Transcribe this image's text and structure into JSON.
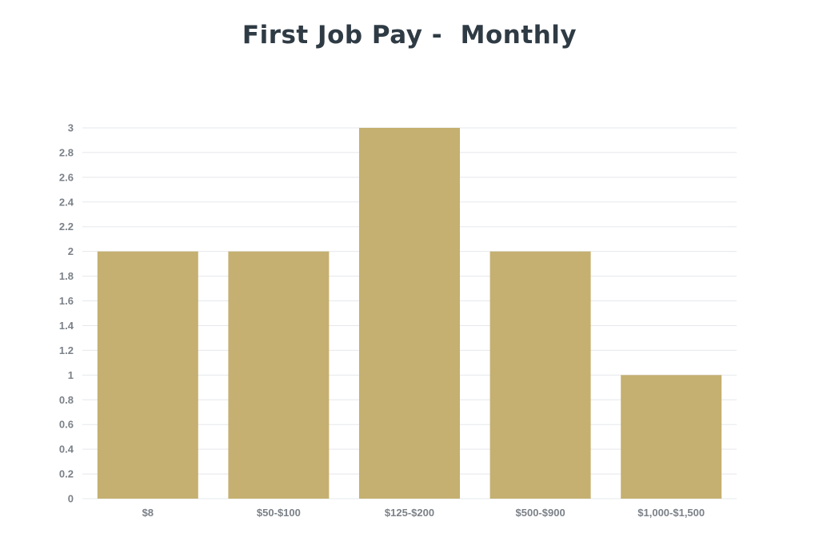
{
  "chart_data": {
    "type": "bar",
    "title": "First Job Pay -  Monthly",
    "categories": [
      "$8",
      "$50-$100",
      "$125-$200",
      "$500-$900",
      "$1,000-$1,500"
    ],
    "values": [
      2,
      2,
      3,
      2,
      1
    ],
    "y_ticks": [
      "0",
      "0.2",
      "0.4",
      "0.6",
      "0.8",
      "1",
      "1.2",
      "1.4",
      "1.6",
      "1.8",
      "2",
      "2.2",
      "2.4",
      "2.6",
      "2.8",
      "3"
    ],
    "ylim": [
      0,
      3
    ],
    "grid": true,
    "legend": "none",
    "bar_color": "#c5b071"
  }
}
